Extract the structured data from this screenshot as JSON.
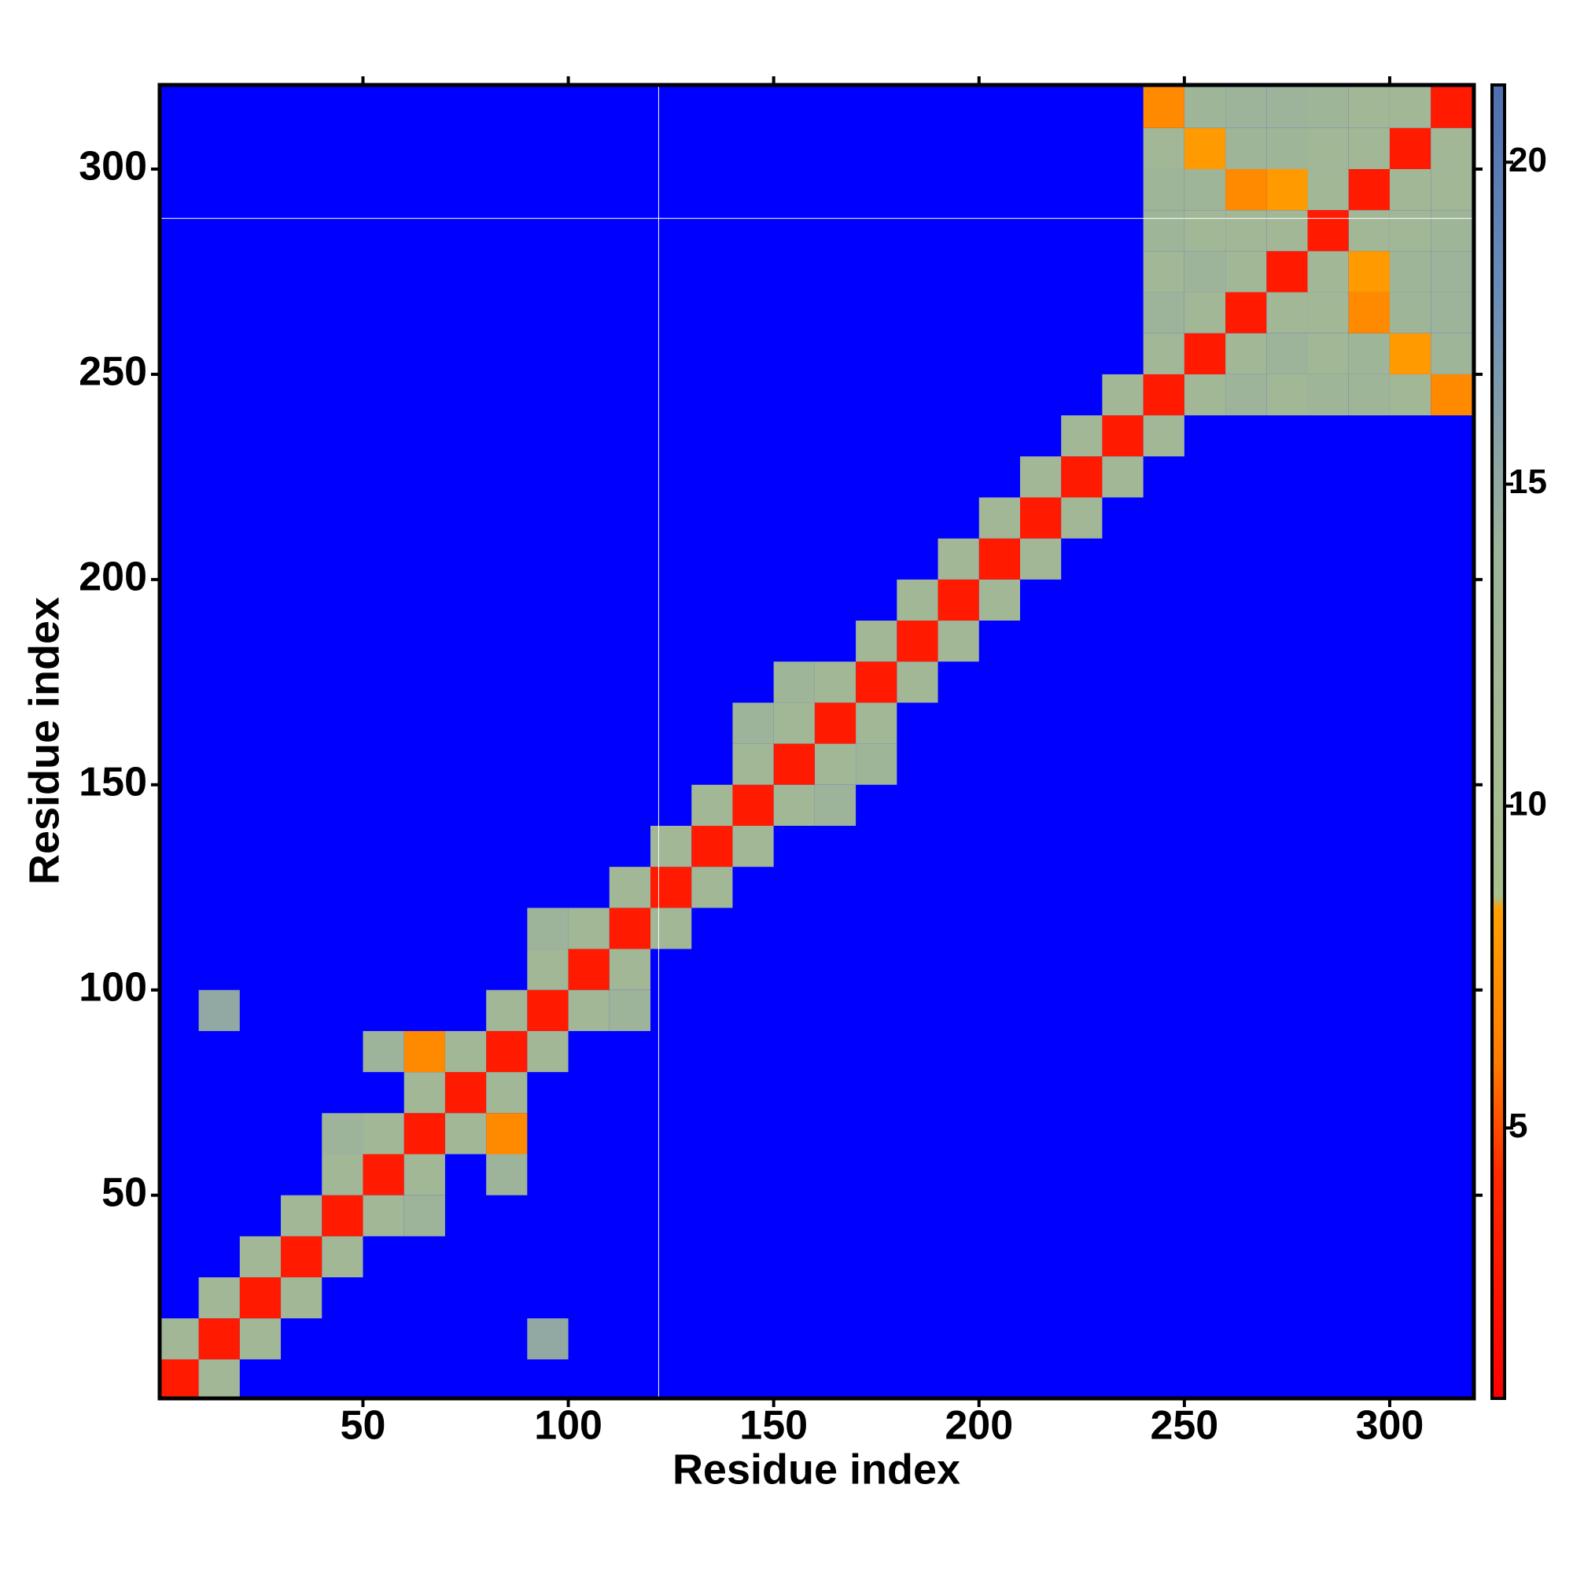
{
  "chart_data": {
    "type": "heatmap",
    "x_label": "Residue index",
    "y_label": "Residue index",
    "xlim": [
      0.5,
      320.5
    ],
    "ylim": [
      0.5,
      320.5
    ],
    "xticks": [
      50,
      100,
      150,
      200,
      250,
      300
    ],
    "yticks": [
      50,
      100,
      150,
      200,
      250,
      300
    ],
    "bins": [
      0,
      10,
      20,
      30,
      40,
      50,
      60,
      70,
      80,
      90,
      100,
      110,
      120,
      130,
      140,
      150,
      160,
      170,
      180,
      190,
      200,
      210,
      220,
      230,
      240,
      250,
      260,
      270,
      280,
      290,
      300,
      310,
      320
    ],
    "background": "#0000ff",
    "reference_lines": {
      "x": 122,
      "y": 288,
      "color": "#ffffff"
    },
    "clim": [
      0.8,
      21.2
    ],
    "cticks": [
      5,
      10,
      15,
      20
    ],
    "colorscale": [
      [
        0.8,
        "#ff0000"
      ],
      [
        4.3,
        "#ff2a00"
      ],
      [
        6,
        "#ff7a00"
      ],
      [
        8.4,
        "#ffa000"
      ],
      [
        8.6,
        "#a9bf8e"
      ],
      [
        14,
        "#9db39a"
      ],
      [
        18,
        "#6b8cb8"
      ],
      [
        21.2,
        "#4f6fb0"
      ]
    ],
    "cells": [
      [
        0,
        0,
        3
      ],
      [
        10,
        10,
        3
      ],
      [
        20,
        20,
        3
      ],
      [
        30,
        30,
        3
      ],
      [
        40,
        40,
        3
      ],
      [
        50,
        50,
        3
      ],
      [
        60,
        60,
        3
      ],
      [
        70,
        70,
        3
      ],
      [
        80,
        80,
        3
      ],
      [
        90,
        90,
        3
      ],
      [
        100,
        100,
        3
      ],
      [
        110,
        110,
        3
      ],
      [
        120,
        120,
        3
      ],
      [
        130,
        130,
        3
      ],
      [
        140,
        140,
        3
      ],
      [
        150,
        150,
        3
      ],
      [
        160,
        160,
        3
      ],
      [
        170,
        170,
        3
      ],
      [
        180,
        180,
        3
      ],
      [
        190,
        190,
        3
      ],
      [
        200,
        200,
        3
      ],
      [
        210,
        210,
        3
      ],
      [
        220,
        220,
        3
      ],
      [
        230,
        230,
        3
      ],
      [
        240,
        240,
        3
      ],
      [
        250,
        250,
        3
      ],
      [
        260,
        260,
        3
      ],
      [
        270,
        270,
        3
      ],
      [
        280,
        280,
        3
      ],
      [
        290,
        290,
        3
      ],
      [
        300,
        300,
        3
      ],
      [
        310,
        310,
        3
      ],
      [
        0,
        10,
        12
      ],
      [
        10,
        20,
        12
      ],
      [
        20,
        30,
        12
      ],
      [
        30,
        40,
        12
      ],
      [
        40,
        50,
        12
      ],
      [
        50,
        60,
        12
      ],
      [
        60,
        70,
        12
      ],
      [
        70,
        80,
        12
      ],
      [
        80,
        90,
        12
      ],
      [
        90,
        100,
        12
      ],
      [
        100,
        110,
        12
      ],
      [
        110,
        120,
        12
      ],
      [
        120,
        130,
        12
      ],
      [
        130,
        140,
        12
      ],
      [
        140,
        150,
        12
      ],
      [
        150,
        160,
        12
      ],
      [
        160,
        170,
        12
      ],
      [
        170,
        180,
        12
      ],
      [
        180,
        190,
        12
      ],
      [
        190,
        200,
        12
      ],
      [
        200,
        210,
        12
      ],
      [
        210,
        220,
        12
      ],
      [
        220,
        230,
        12
      ],
      [
        230,
        240,
        12
      ],
      [
        240,
        250,
        12
      ],
      [
        250,
        260,
        12
      ],
      [
        260,
        270,
        12
      ],
      [
        270,
        280,
        12
      ],
      [
        280,
        290,
        12
      ],
      [
        290,
        300,
        12
      ],
      [
        300,
        310,
        12
      ],
      [
        10,
        0,
        12
      ],
      [
        20,
        10,
        12
      ],
      [
        30,
        20,
        12
      ],
      [
        40,
        30,
        12
      ],
      [
        50,
        40,
        12
      ],
      [
        60,
        50,
        12
      ],
      [
        70,
        60,
        12
      ],
      [
        80,
        70,
        12
      ],
      [
        90,
        80,
        12
      ],
      [
        100,
        90,
        12
      ],
      [
        110,
        100,
        12
      ],
      [
        120,
        110,
        12
      ],
      [
        130,
        120,
        12
      ],
      [
        140,
        130,
        12
      ],
      [
        150,
        140,
        12
      ],
      [
        160,
        150,
        12
      ],
      [
        170,
        160,
        12
      ],
      [
        180,
        170,
        12
      ],
      [
        190,
        180,
        12
      ],
      [
        200,
        190,
        12
      ],
      [
        210,
        200,
        12
      ],
      [
        220,
        210,
        12
      ],
      [
        230,
        220,
        12
      ],
      [
        240,
        230,
        12
      ],
      [
        250,
        240,
        12
      ],
      [
        260,
        250,
        12
      ],
      [
        270,
        260,
        12
      ],
      [
        280,
        270,
        12
      ],
      [
        290,
        280,
        12
      ],
      [
        300,
        290,
        12
      ],
      [
        310,
        300,
        12
      ],
      [
        60,
        80,
        7
      ],
      [
        80,
        60,
        7
      ],
      [
        50,
        80,
        14
      ],
      [
        80,
        50,
        14
      ],
      [
        40,
        60,
        14
      ],
      [
        60,
        40,
        14
      ],
      [
        90,
        110,
        14
      ],
      [
        110,
        90,
        14
      ],
      [
        150,
        170,
        13
      ],
      [
        170,
        150,
        13
      ],
      [
        140,
        160,
        14
      ],
      [
        160,
        140,
        14
      ],
      [
        240,
        260,
        14
      ],
      [
        260,
        240,
        14
      ],
      [
        240,
        270,
        12
      ],
      [
        270,
        240,
        12
      ],
      [
        240,
        280,
        13
      ],
      [
        280,
        240,
        13
      ],
      [
        240,
        290,
        13
      ],
      [
        290,
        240,
        13
      ],
      [
        240,
        300,
        12
      ],
      [
        300,
        240,
        12
      ],
      [
        240,
        310,
        7
      ],
      [
        310,
        240,
        7
      ],
      [
        250,
        270,
        14
      ],
      [
        270,
        250,
        14
      ],
      [
        250,
        280,
        12
      ],
      [
        280,
        250,
        12
      ],
      [
        250,
        290,
        13
      ],
      [
        290,
        250,
        13
      ],
      [
        250,
        300,
        8
      ],
      [
        300,
        250,
        8
      ],
      [
        250,
        310,
        13
      ],
      [
        310,
        250,
        13
      ],
      [
        260,
        280,
        12
      ],
      [
        280,
        260,
        12
      ],
      [
        260,
        290,
        7
      ],
      [
        290,
        260,
        7
      ],
      [
        260,
        300,
        13
      ],
      [
        300,
        260,
        13
      ],
      [
        260,
        310,
        14
      ],
      [
        310,
        260,
        14
      ],
      [
        270,
        290,
        8
      ],
      [
        290,
        270,
        8
      ],
      [
        270,
        300,
        13
      ],
      [
        300,
        270,
        13
      ],
      [
        270,
        310,
        14
      ],
      [
        310,
        270,
        14
      ],
      [
        280,
        300,
        12
      ],
      [
        300,
        280,
        12
      ],
      [
        280,
        310,
        13
      ],
      [
        310,
        280,
        13
      ],
      [
        290,
        310,
        12
      ],
      [
        310,
        290,
        12
      ],
      [
        90,
        10,
        15
      ],
      [
        10,
        90,
        15
      ]
    ]
  }
}
